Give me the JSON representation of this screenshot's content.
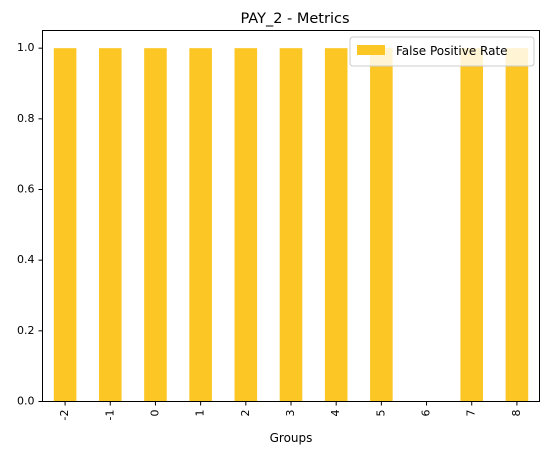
{
  "chart_data": {
    "type": "bar",
    "title": "PAY_2 - Metrics",
    "xlabel": "Groups",
    "ylabel": "",
    "categories": [
      "-2",
      "-1",
      "0",
      "1",
      "2",
      "3",
      "4",
      "5",
      "6",
      "7",
      "8"
    ],
    "series": [
      {
        "name": "False Positive Rate",
        "color": "#fcc624",
        "values": [
          1.0,
          1.0,
          1.0,
          1.0,
          1.0,
          1.0,
          1.0,
          1.0,
          0.0,
          1.0,
          1.0
        ]
      }
    ],
    "ylim": [
      0,
      1.05
    ],
    "yticks": [
      0.0,
      0.2,
      0.4,
      0.6,
      0.8,
      1.0
    ],
    "ytick_labels": [
      "0.0",
      "0.2",
      "0.4",
      "0.6",
      "0.8",
      "1.0"
    ],
    "grid": false,
    "legend_position": "top-right"
  }
}
